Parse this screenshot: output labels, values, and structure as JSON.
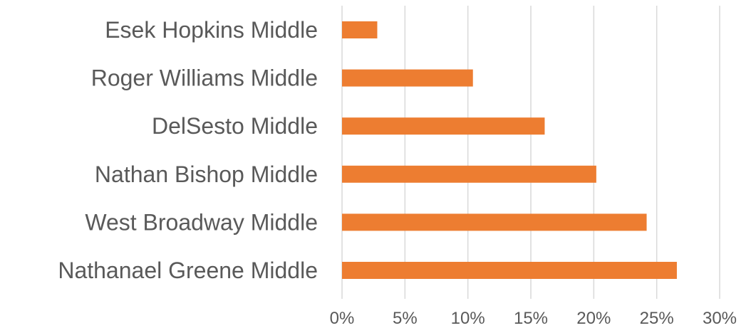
{
  "chart_data": {
    "type": "bar",
    "orientation": "horizontal",
    "categories": [
      "Esek Hopkins Middle",
      "Roger Williams Middle",
      "DelSesto Middle",
      "Nathan Bishop Middle",
      "West Broadway Middle",
      "Nathanael Greene Middle"
    ],
    "values": [
      2.8,
      10.4,
      16.1,
      20.2,
      24.2,
      26.6
    ],
    "value_unit": "percent",
    "xlim": [
      0,
      30
    ],
    "x_ticks": [
      0,
      5,
      10,
      15,
      20,
      25,
      30
    ],
    "x_tick_labels": [
      "0%",
      "5%",
      "10%",
      "15%",
      "20%",
      "25%",
      "30%"
    ],
    "title": "",
    "xlabel": "",
    "ylabel": "",
    "grid": "vertical",
    "legend": "none",
    "bar_color": "#ED7D31",
    "grid_color": "#D9D9D9",
    "text_color": "#595959"
  }
}
